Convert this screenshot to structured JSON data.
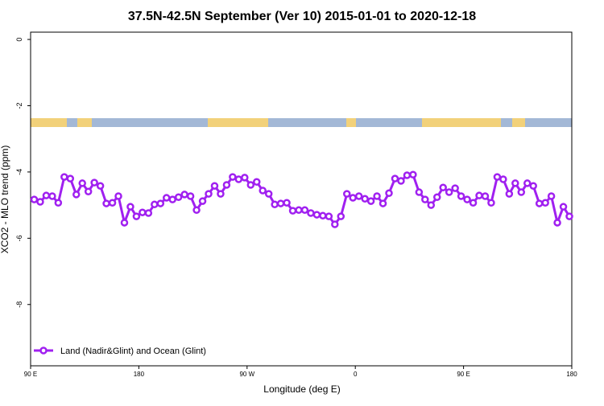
{
  "chart_data": {
    "type": "line",
    "title": "37.5N-42.5N September (Ver 10)   2015-01-01 to 2020-12-18",
    "x_label": "Longitude (deg E)",
    "y_label": "XCO2 - MLO trend (ppm)",
    "x": [
      93,
      98,
      103,
      108,
      113,
      118,
      123,
      128,
      133,
      138,
      143,
      148,
      153,
      158,
      163,
      168,
      173,
      178,
      183,
      188,
      193,
      198,
      203,
      208,
      213,
      218,
      223,
      228,
      233,
      238,
      243,
      248,
      253,
      258,
      263,
      268,
      273,
      278,
      283,
      288,
      293,
      298,
      303,
      308,
      313,
      318,
      323,
      328,
      333,
      338,
      343,
      348,
      353,
      358,
      363,
      368,
      373,
      378,
      383,
      388,
      393,
      398,
      403,
      408,
      413,
      418,
      423,
      428,
      433,
      438,
      443,
      448,
      453,
      458,
      463,
      468,
      473,
      478,
      483,
      488,
      493,
      498,
      503,
      508,
      513,
      518,
      523,
      528,
      533,
      538
    ],
    "series": [
      {
        "name": "Land (Nadir&Glint) and Ocean (Glint)",
        "color": "#a020f0",
        "values": [
          -4.83,
          -4.9,
          -4.71,
          -4.73,
          -4.93,
          -4.15,
          -4.2,
          -4.68,
          -4.34,
          -4.59,
          -4.32,
          -4.42,
          -4.95,
          -4.93,
          -4.73,
          -5.53,
          -5.05,
          -5.34,
          -5.22,
          -5.24,
          -4.98,
          -4.95,
          -4.78,
          -4.83,
          -4.76,
          -4.68,
          -4.73,
          -5.15,
          -4.88,
          -4.66,
          -4.42,
          -4.66,
          -4.39,
          -4.15,
          -4.22,
          -4.17,
          -4.39,
          -4.3,
          -4.56,
          -4.66,
          -4.98,
          -4.95,
          -4.93,
          -5.17,
          -5.15,
          -5.15,
          -5.24,
          -5.29,
          -5.32,
          -5.34,
          -5.58,
          -5.34,
          -4.66,
          -4.78,
          -4.73,
          -4.81,
          -4.88,
          -4.73,
          -4.95,
          -4.64,
          -4.2,
          -4.27,
          -4.1,
          -4.08,
          -4.61,
          -4.83,
          -5.0,
          -4.76,
          -4.47,
          -4.61,
          -4.49,
          -4.73,
          -4.83,
          -4.93,
          -4.71,
          -4.73,
          -4.93,
          -4.15,
          -4.22,
          -4.66,
          -4.34,
          -4.61,
          -4.34,
          -4.42,
          -4.95,
          -4.93,
          -4.73,
          -5.53,
          -5.05,
          -5.34
        ]
      }
    ],
    "xlim": [
      90,
      540
    ],
    "xticks": [
      {
        "value": 90,
        "label": "90 E"
      },
      180,
      {
        "value": 270,
        "label": "90 W"
      },
      {
        "value": 360,
        "label": "0"
      },
      {
        "value": 450,
        "label": "90 E"
      },
      {
        "value": 540,
        "label": "180"
      }
    ],
    "ylim": [
      -9.85,
      0.22
    ],
    "yticks": [
      0,
      -2,
      -4,
      -6,
      -8
    ],
    "legend": "bottomleft"
  }
}
